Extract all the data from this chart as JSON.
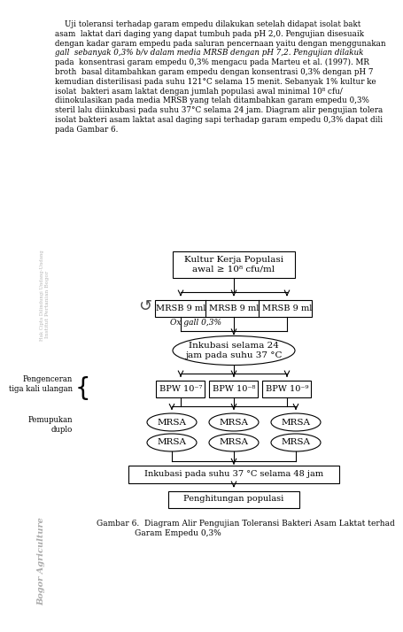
{
  "para_lines": [
    "    Uji toleransi terhadap garam empedu dilakukan setelah didapat isolat bakt",
    "asam  laktat dari daging yang dapat tumbuh pada pH 2,0. Pengujian disesuaik",
    "dengan kadar garam empedu pada saluran pencernaan yaitu dengan menggunakan",
    "gall  sebanyak 0,3% b/v dalam media MRSB dengan pH 7,2. Pengujian dilakuk",
    "pada  konsentrasi garam empedu 0,3% mengacu pada Marteu et al. (1997). MR",
    "broth  basal ditambahkan garam empedu dengan konsentrasi 0,3% dengan pH 7",
    "kemudian disterilisasi pada suhu 121°C selama 15 menit. Sebanyak 1% kultur ke",
    "isolat  bakteri asam laktat dengan jumlah populasi awal minimal 10⁸ cfu/",
    "diinokulasikan pada media MRSB yang telah ditambahkan garam empedu 0,3%",
    "steril lalu diinkubasi pada suhu 37°C selama 24 jam. Diagram alir pengujian tolera",
    "isolat bakteri asam laktat asal daging sapi terhadap garam empedu 0,3% dapat dili",
    "pada Gambar 6."
  ],
  "italic_starts": [
    "gall",
    "pada  konsentrasi garam empedu 0,3% mengacu pada Marteu"
  ],
  "box1_text": "Kultur Kerja Populasi\nawal ≥ 10⁸ cfu/ml",
  "box2_texts": [
    "MRSB 9 ml",
    "MRSB 9 ml",
    "MRSB 9 ml"
  ],
  "box2_sublabel": "Ox gall 0,3%",
  "ellipse1_text": "Inkubasi selama 24\njam pada suhu 37 °C",
  "box3_texts": [
    "BPW 10⁻⁷",
    "BPW 10⁻⁸",
    "BPW 10⁻⁹"
  ],
  "mrsa_text": "MRSA",
  "box4_text": "Inkubasi pada suhu 37 °C selama 48 jam",
  "box5_text": "Penghitungan populasi",
  "left_label1": "Pengenceran\ntiga kali ulangan",
  "left_label2": "Pemupukan\nduplo",
  "caption_line1": "Gambar 6.  Diagram Alir Pengujian Toleransi Bakteri Asam Laktat terhad",
  "caption_line2": "               Garam Empedu 0,3%",
  "side_text1": "Hak Cipta Dilindungi Undang-Undang",
  "side_text2": "Institut Pertanian Bogor",
  "side_text3": "Bogor Agriculture",
  "bg_color": "#ffffff",
  "box_color": "#ffffff",
  "box_edge": "#000000",
  "text_color": "#000000",
  "gray_color": "#888888"
}
